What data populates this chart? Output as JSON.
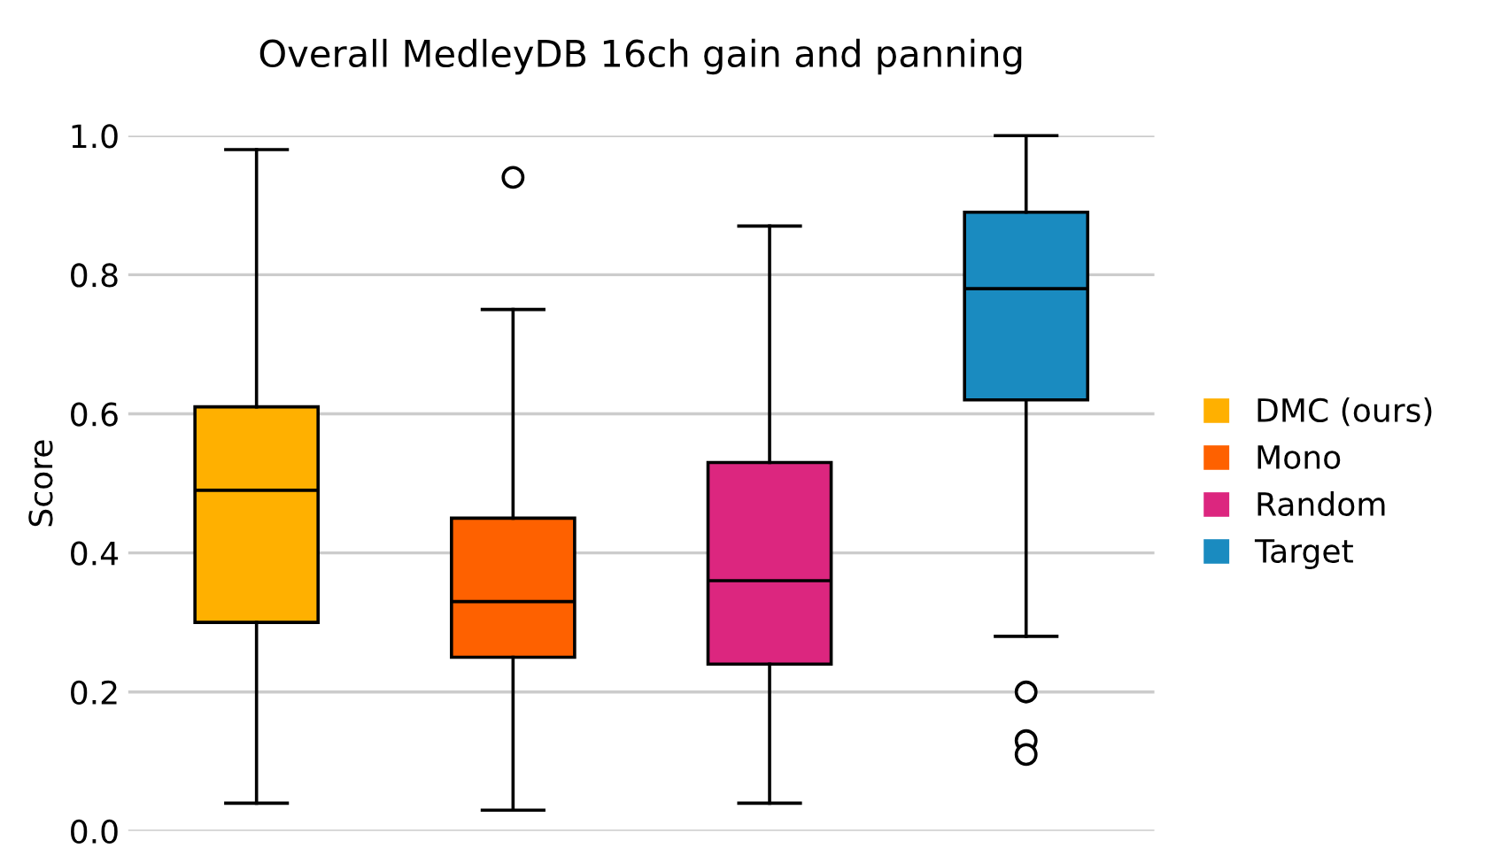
{
  "chart_data": {
    "type": "box",
    "title": "Overall MedleyDB 16ch gain and panning",
    "ylabel": "Score",
    "categories": [
      null,
      null,
      null,
      null
    ],
    "series": [
      {
        "name": "DMC (ours)",
        "color": "#ffb000",
        "boxes": [
          {
            "low": 0.04,
            "q1": 0.3,
            "median": 0.49,
            "q3": 0.61,
            "high": 0.98
          },
          null,
          null,
          null
        ]
      },
      {
        "name": "Mono",
        "color": "#fe6100",
        "boxes": [
          null,
          {
            "low": 0.03,
            "q1": 0.25,
            "median": 0.33,
            "q3": 0.45,
            "high": 0.75,
            "outliers": [
              0.94
            ]
          },
          null,
          null
        ]
      },
      {
        "name": "Random",
        "color": "#dc267f",
        "boxes": [
          null,
          null,
          {
            "low": 0.04,
            "q1": 0.24,
            "median": 0.36,
            "q3": 0.53,
            "high": 0.87
          },
          null
        ]
      },
      {
        "name": "Target",
        "color": "#1a8bc0",
        "boxes": [
          null,
          null,
          null,
          {
            "low": 0.28,
            "q1": 0.62,
            "median": 0.78,
            "q3": 0.89,
            "high": 1.0,
            "outliers": [
              0.2,
              0.13,
              0.11
            ]
          }
        ]
      }
    ],
    "ylim": [
      0,
      1.0
    ],
    "yticks": [
      {
        "value": 0,
        "label": "0.0"
      },
      {
        "value": 0.2,
        "label": "0.2"
      },
      {
        "value": 0.4,
        "label": "0.4"
      },
      {
        "value": 0.6,
        "label": "0.6"
      },
      {
        "value": 0.8,
        "label": "0.8"
      },
      {
        "value": 1.0,
        "label": "1.0"
      }
    ],
    "grid": "y",
    "legend": "right"
  }
}
